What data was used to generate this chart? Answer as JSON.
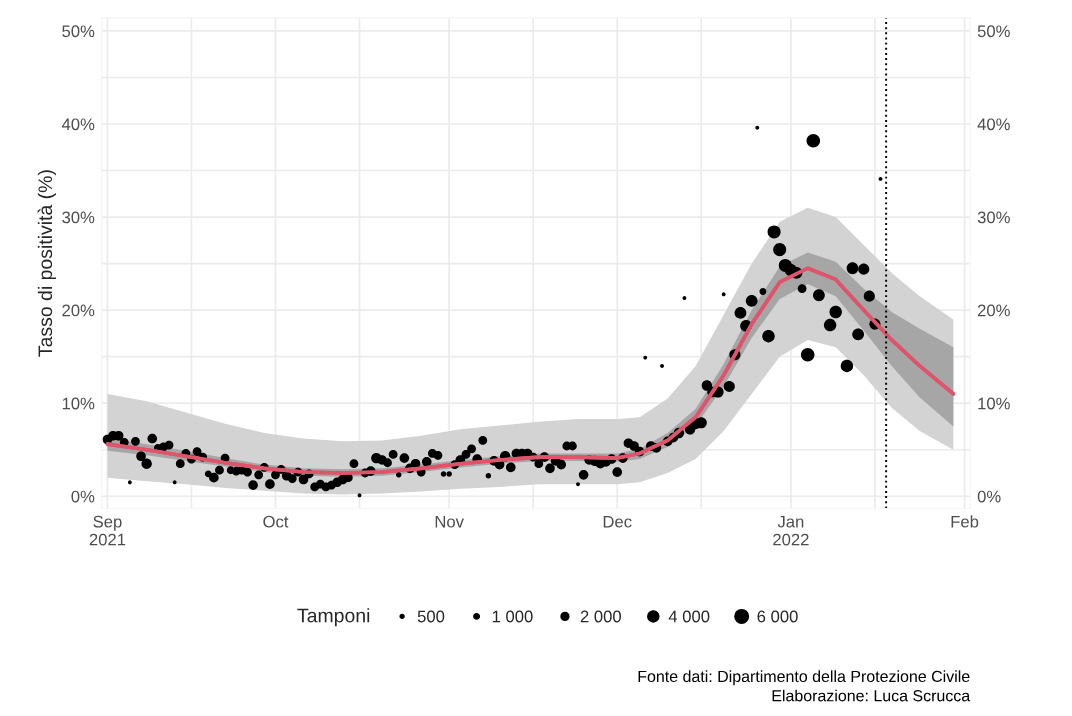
{
  "chart_data": {
    "type": "bubble",
    "ylabel": "Tasso di positività (%)",
    "legend_title": "Tamponi",
    "grid": true,
    "xlim": [
      "2021-08-31",
      "2022-02-02"
    ],
    "xticks": [
      {
        "value": "2021-09-01",
        "label": "Sep\n2021"
      },
      {
        "value": "2021-09-16",
        "label": null
      },
      {
        "value": "2021-10-01",
        "label": "Oct"
      },
      {
        "value": "2021-10-16",
        "label": null
      },
      {
        "value": "2021-11-01",
        "label": "Nov"
      },
      {
        "value": "2021-11-16",
        "label": null
      },
      {
        "value": "2021-12-01",
        "label": "Dec"
      },
      {
        "value": "2021-12-16",
        "label": null
      },
      {
        "value": "2022-01-01",
        "label": "Jan\n2022"
      },
      {
        "value": "2022-01-16",
        "label": null
      },
      {
        "value": "2022-02-01",
        "label": "Feb"
      }
    ],
    "ylim": [
      -1.3,
      51.4
    ],
    "yticks": [
      {
        "value": 0,
        "label": "0%"
      },
      {
        "value": 5,
        "label": null
      },
      {
        "value": 10,
        "label": "10%"
      },
      {
        "value": 15,
        "label": null
      },
      {
        "value": 20,
        "label": "20%"
      },
      {
        "value": 25,
        "label": null
      },
      {
        "value": 30,
        "label": "30%"
      },
      {
        "value": 35,
        "label": null
      },
      {
        "value": 40,
        "label": "40%"
      },
      {
        "value": 45,
        "label": null
      },
      {
        "value": 50,
        "label": "50%"
      }
    ],
    "y2lim": [
      -1.3,
      51.4
    ],
    "y2ticks": [
      {
        "value": 0,
        "label": "0%"
      },
      {
        "value": 10,
        "label": "10%"
      },
      {
        "value": 20,
        "label": "20%"
      },
      {
        "value": 30,
        "label": "30%"
      },
      {
        "value": 40,
        "label": "40%"
      },
      {
        "value": 50,
        "label": "50%"
      }
    ],
    "size_legend": [
      {
        "value": 500,
        "label": "500"
      },
      {
        "value": 1000,
        "label": "1 000"
      },
      {
        "value": 2000,
        "label": "2 000"
      },
      {
        "value": 4000,
        "label": "4 000"
      },
      {
        "value": 6000,
        "label": "6 000"
      }
    ],
    "ref_lines": [
      {
        "axis": "x",
        "value": "2022-01-18",
        "line_style": "dotted",
        "color": "#000000"
      }
    ],
    "annotations": [
      "Fonte dati: Dipartimento della Protezione Civile",
      "Elaborazione: Luca Scrucca"
    ],
    "series": [
      {
        "type": "line",
        "color": "#df536b",
        "x": [
          "2021-09-01",
          "2021-09-08",
          "2021-09-15",
          "2021-09-22",
          "2021-09-29",
          "2021-10-06",
          "2021-10-13",
          "2021-10-20",
          "2021-10-27",
          "2021-11-03",
          "2021-11-10",
          "2021-11-17",
          "2021-11-24",
          "2021-12-01",
          "2021-12-05",
          "2021-12-10",
          "2021-12-15",
          "2021-12-20",
          "2021-12-25",
          "2021-12-30",
          "2022-01-04",
          "2022-01-09",
          "2022-01-14",
          "2022-01-19",
          "2022-01-24",
          "2022-01-30"
        ],
        "lower": [
          2.0,
          1.6,
          1.3,
          0.9,
          0.6,
          0.3,
          0.2,
          0.3,
          0.5,
          0.8,
          1.0,
          1.3,
          1.3,
          1.3,
          1.5,
          2.5,
          4.0,
          7.0,
          11.0,
          15.0,
          16.8,
          16.0,
          13.0,
          9.5,
          7.0,
          5.0
        ],
        "upper": [
          11.0,
          10.2,
          9.0,
          7.8,
          6.8,
          6.2,
          5.9,
          6.0,
          6.5,
          7.2,
          7.6,
          8.0,
          8.3,
          8.3,
          8.5,
          10.5,
          14.0,
          19.5,
          25.0,
          29.5,
          31.0,
          30.0,
          27.0,
          24.0,
          21.5,
          19.0
        ],
        "values": [
          5.6,
          5.0,
          4.3,
          3.6,
          3.0,
          2.6,
          2.5,
          2.6,
          3.0,
          3.5,
          3.9,
          4.2,
          4.2,
          4.1,
          4.6,
          6.0,
          8.5,
          13.0,
          18.5,
          23.0,
          24.5,
          23.3,
          20.0,
          16.8,
          14.0,
          11.0
        ]
      },
      {
        "type": "bubble",
        "color": "#000000",
        "marker": "circle",
        "x": [
          "2021-09-01",
          "2021-09-02",
          "2021-09-03",
          "2021-09-04",
          "2021-09-05",
          "2021-09-06",
          "2021-09-07",
          "2021-09-08",
          "2021-09-09",
          "2021-09-10",
          "2021-09-11",
          "2021-09-12",
          "2021-09-13",
          "2021-09-14",
          "2021-09-15",
          "2021-09-16",
          "2021-09-17",
          "2021-09-18",
          "2021-09-19",
          "2021-09-20",
          "2021-09-21",
          "2021-09-22",
          "2021-09-23",
          "2021-09-24",
          "2021-09-25",
          "2021-09-26",
          "2021-09-27",
          "2021-09-28",
          "2021-09-29",
          "2021-09-30",
          "2021-10-01",
          "2021-10-02",
          "2021-10-03",
          "2021-10-04",
          "2021-10-05",
          "2021-10-06",
          "2021-10-07",
          "2021-10-08",
          "2021-10-09",
          "2021-10-10",
          "2021-10-11",
          "2021-10-12",
          "2021-10-13",
          "2021-10-14",
          "2021-10-15",
          "2021-10-16",
          "2021-10-17",
          "2021-10-18",
          "2021-10-19",
          "2021-10-20",
          "2021-10-21",
          "2021-10-22",
          "2021-10-23",
          "2021-10-24",
          "2021-10-25",
          "2021-10-26",
          "2021-10-27",
          "2021-10-28",
          "2021-10-29",
          "2021-10-30",
          "2021-10-31",
          "2021-11-01",
          "2021-11-02",
          "2021-11-03",
          "2021-11-04",
          "2021-11-05",
          "2021-11-06",
          "2021-11-07",
          "2021-11-08",
          "2021-11-09",
          "2021-11-10",
          "2021-11-11",
          "2021-11-12",
          "2021-11-13",
          "2021-11-14",
          "2021-11-15",
          "2021-11-16",
          "2021-11-17",
          "2021-11-18",
          "2021-11-19",
          "2021-11-20",
          "2021-11-21",
          "2021-11-22",
          "2021-11-23",
          "2021-11-24",
          "2021-11-25",
          "2021-11-26",
          "2021-11-27",
          "2021-11-28",
          "2021-11-29",
          "2021-11-30",
          "2021-12-01",
          "2021-12-02",
          "2021-12-03",
          "2021-12-04",
          "2021-12-05",
          "2021-12-06",
          "2021-12-07",
          "2021-12-08",
          "2021-12-09",
          "2021-12-10",
          "2021-12-11",
          "2021-12-12",
          "2021-12-13",
          "2021-12-14",
          "2021-12-15",
          "2021-12-16",
          "2021-12-17",
          "2021-12-18",
          "2021-12-19",
          "2021-12-20",
          "2021-12-21",
          "2021-12-22",
          "2021-12-23",
          "2021-12-24",
          "2021-12-25",
          "2021-12-26",
          "2021-12-27",
          "2021-12-28",
          "2021-12-29",
          "2021-12-30",
          "2021-12-31",
          "2022-01-01",
          "2022-01-02",
          "2022-01-03",
          "2022-01-04",
          "2022-01-05",
          "2022-01-06",
          "2022-01-08",
          "2022-01-09",
          "2022-01-11",
          "2022-01-12",
          "2022-01-13",
          "2022-01-14",
          "2022-01-15",
          "2022-01-16",
          "2022-01-17"
        ],
        "values": [
          6.1,
          6.5,
          6.5,
          5.8,
          1.5,
          5.9,
          4.3,
          3.5,
          6.2,
          5.2,
          5.3,
          5.5,
          1.5,
          3.5,
          4.6,
          4.0,
          4.8,
          4.2,
          2.4,
          2.0,
          2.8,
          4.1,
          2.8,
          2.7,
          2.8,
          2.6,
          1.2,
          2.3,
          3.1,
          1.3,
          2.3,
          2.9,
          2.2,
          1.9,
          2.6,
          1.8,
          2.4,
          1.0,
          1.3,
          1.0,
          1.2,
          1.5,
          1.8,
          2.0,
          3.5,
          0.1,
          2.5,
          2.7,
          4.1,
          3.9,
          3.6,
          4.5,
          2.3,
          4.1,
          3.0,
          3.5,
          2.6,
          3.7,
          4.6,
          4.4,
          2.4,
          2.4,
          3.4,
          3.9,
          4.5,
          5.1,
          4.0,
          6.0,
          2.2,
          3.8,
          3.4,
          4.3,
          3.1,
          4.6,
          4.6,
          4.6,
          4.2,
          3.5,
          4.2,
          3.0,
          3.8,
          3.4,
          5.4,
          5.4,
          1.3,
          2.3,
          3.9,
          3.8,
          3.5,
          3.7,
          4.0,
          2.6,
          4.1,
          5.7,
          5.4,
          4.8,
          14.9,
          5.4,
          5.2,
          14.0,
          5.9,
          6.3,
          6.8,
          21.3,
          7.2,
          7.8,
          7.9,
          11.9,
          11.2,
          11.2,
          21.7,
          11.8,
          15.2,
          19.7,
          18.3,
          21.0,
          39.6,
          22.0,
          17.2,
          28.4,
          26.5,
          24.8,
          24.3,
          24.0,
          22.3,
          15.2,
          38.2,
          21.6,
          18.4,
          19.8,
          14.0,
          24.5,
          17.4,
          24.4,
          21.5,
          18.5,
          34.1
        ],
        "sizes": [
          3000,
          3000,
          3000,
          2500,
          500,
          2500,
          3000,
          3500,
          3000,
          2000,
          2500,
          2500,
          500,
          2500,
          2500,
          2500,
          2500,
          2500,
          1500,
          3000,
          2500,
          2500,
          2000,
          2500,
          2500,
          2500,
          3000,
          2500,
          2500,
          3000,
          2500,
          2500,
          3000,
          2500,
          2500,
          3000,
          2500,
          2500,
          2500,
          2500,
          2500,
          3000,
          3000,
          2500,
          2500,
          500,
          2500,
          3000,
          3500,
          3000,
          2500,
          2500,
          1000,
          3000,
          3000,
          3000,
          2500,
          3000,
          2500,
          2500,
          1000,
          1000,
          2500,
          3000,
          2500,
          2500,
          3000,
          2500,
          1000,
          3000,
          3000,
          3500,
          3000,
          3000,
          3000,
          3000,
          2500,
          2500,
          3000,
          3000,
          3000,
          3000,
          2500,
          2500,
          500,
          3000,
          3000,
          3500,
          3000,
          3000,
          3000,
          3000,
          3000,
          3000,
          3000,
          3000,
          500,
          3000,
          3000,
          500,
          3000,
          3000,
          3500,
          500,
          3500,
          4000,
          4000,
          3500,
          3500,
          4000,
          500,
          4000,
          4000,
          4500,
          4500,
          4500,
          500,
          1500,
          5000,
          5500,
          5500,
          5500,
          5000,
          4500,
          2500,
          6000,
          6000,
          4500,
          5000,
          5000,
          5000,
          4500,
          4500,
          4000,
          4000,
          4000,
          500
        ]
      },
      {
        "type": "line",
        "color": "#df536b",
        "x": [
          "2021-09-01",
          "2021-09-08",
          "2021-09-15",
          "2021-09-22",
          "2021-09-29",
          "2021-10-06",
          "2021-10-13",
          "2021-10-20",
          "2021-10-27",
          "2021-11-03",
          "2021-11-10",
          "2021-11-17",
          "2021-11-24",
          "2021-12-01",
          "2021-12-05",
          "2021-12-10",
          "2021-12-15",
          "2021-12-20",
          "2021-12-25",
          "2021-12-30",
          "2022-01-04",
          "2022-01-09",
          "2022-01-14",
          "2022-01-19",
          "2022-01-24",
          "2022-01-30"
        ],
        "values": [
          5.6,
          5.0,
          4.3,
          3.6,
          3.0,
          2.6,
          2.5,
          2.6,
          3.0,
          3.5,
          3.9,
          4.2,
          4.2,
          4.1,
          4.6,
          6.0,
          8.5,
          13.0,
          18.5,
          23.0,
          24.5,
          23.3,
          20.0,
          16.8,
          14.0,
          11.0
        ],
        "lower": [
          4.9,
          4.4,
          3.8,
          3.2,
          2.6,
          2.2,
          2.1,
          2.2,
          2.6,
          3.1,
          3.5,
          3.8,
          3.8,
          3.7,
          4.0,
          5.3,
          7.6,
          11.8,
          17.0,
          21.2,
          22.8,
          21.5,
          17.8,
          14.0,
          10.6,
          7.5
        ],
        "upper": [
          6.3,
          5.6,
          4.9,
          4.1,
          3.4,
          3.0,
          2.9,
          3.0,
          3.4,
          3.9,
          4.3,
          4.6,
          4.6,
          4.6,
          5.1,
          6.8,
          9.4,
          14.2,
          20.0,
          24.7,
          26.2,
          25.2,
          22.3,
          19.8,
          18.0,
          16.0
        ]
      }
    ]
  }
}
